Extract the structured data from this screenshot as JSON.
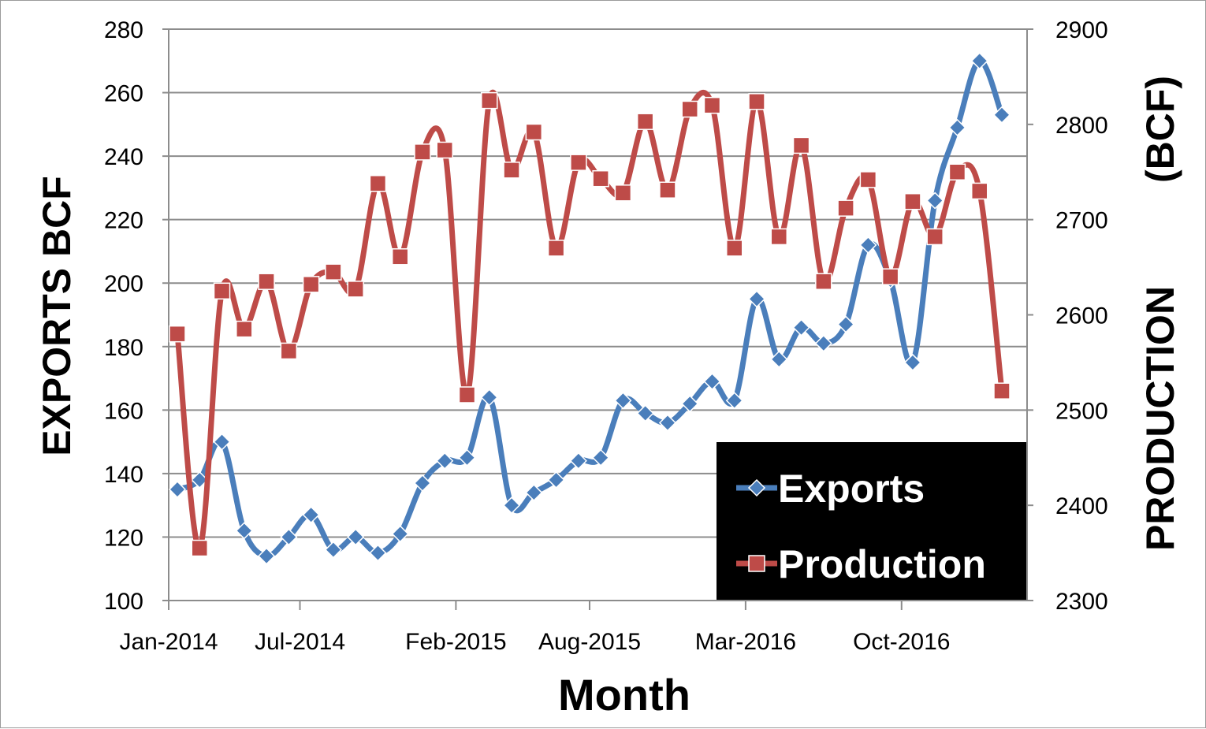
{
  "chart_data": {
    "type": "line",
    "xlabel": "Month",
    "ylabel_left": "EXPORTS BCF",
    "ylabel_right_top": "(BCF)",
    "ylabel_right_bottom": "PRODUCTION",
    "ylim_left": [
      100,
      280
    ],
    "ylim_right": [
      2300,
      2900
    ],
    "yticks_left": [
      "100",
      "120",
      "140",
      "160",
      "180",
      "200",
      "220",
      "240",
      "260",
      "280"
    ],
    "yticks_right": [
      "2300",
      "2400",
      "2500",
      "2600",
      "2700",
      "2800",
      "2900"
    ],
    "xtick_labels": [
      "Jan-2014",
      "Jul-2014",
      "Feb-2015",
      "Aug-2015",
      "Mar-2016",
      "Oct-2016"
    ],
    "xtick_indices": [
      0,
      6,
      13,
      19,
      26,
      33
    ],
    "grid": true,
    "legend_position": "bottom-right",
    "series": [
      {
        "name": "Exports",
        "axis": "left",
        "color": "#4a7ebb",
        "marker": "diamond",
        "values": [
          135,
          138,
          150,
          122,
          114,
          120,
          127,
          116,
          120,
          115,
          121,
          137,
          144,
          145,
          164,
          130,
          134,
          138,
          144,
          145,
          163,
          159,
          156,
          162,
          169,
          163,
          195,
          176,
          186,
          181,
          187,
          212,
          201,
          175,
          226,
          249,
          270,
          253
        ]
      },
      {
        "name": "Production",
        "axis": "right",
        "color": "#be4b48",
        "marker": "square",
        "values": [
          2580,
          2355,
          2625,
          2585,
          2635,
          2562,
          2632,
          2645,
          2627,
          2738,
          2661,
          2771,
          2773,
          2516,
          2825,
          2752,
          2792,
          2670,
          2760,
          2743,
          2728,
          2803,
          2731,
          2816,
          2820,
          2670,
          2824,
          2682,
          2778,
          2635,
          2712,
          2742,
          2640,
          2719,
          2682,
          2750,
          2730,
          2520
        ]
      }
    ]
  }
}
